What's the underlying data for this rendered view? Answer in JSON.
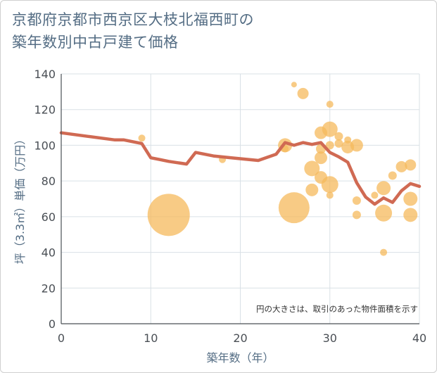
{
  "title_lines": [
    "京都府京都市西京区大枝北福西町の",
    "築年数別中古戸建て価格"
  ],
  "chart_data": {
    "type": "scatter+line",
    "title": "京都府京都市西京区大枝北福西町の築年数別中古戸建て価格",
    "xlabel": "築年数（年）",
    "ylabel": "坪（3.3㎡）単価（万円）",
    "xlim": [
      0,
      40
    ],
    "ylim": [
      0,
      140
    ],
    "xticks": [
      0,
      10,
      20,
      30,
      40
    ],
    "yticks": [
      0,
      20,
      40,
      60,
      80,
      100,
      120,
      140
    ],
    "grid": true,
    "annotation": "円の大きさは、取引のあった物件面積を示す",
    "colors": {
      "bubble": "#f5b95c",
      "line": "#d06a53",
      "grid": "#d9e0e6"
    },
    "bubbles": [
      {
        "x": 9,
        "y": 104,
        "size": 5
      },
      {
        "x": 12,
        "y": 61,
        "size": 30
      },
      {
        "x": 18,
        "y": 92,
        "size": 5
      },
      {
        "x": 25,
        "y": 100,
        "size": 10
      },
      {
        "x": 25,
        "y": 98,
        "size": 5
      },
      {
        "x": 26,
        "y": 65,
        "size": 22
      },
      {
        "x": 26,
        "y": 134,
        "size": 4
      },
      {
        "x": 27,
        "y": 129,
        "size": 8
      },
      {
        "x": 28,
        "y": 87,
        "size": 11
      },
      {
        "x": 28,
        "y": 75,
        "size": 9
      },
      {
        "x": 29,
        "y": 107,
        "size": 9
      },
      {
        "x": 29,
        "y": 98,
        "size": 7
      },
      {
        "x": 29,
        "y": 93,
        "size": 9
      },
      {
        "x": 29,
        "y": 82,
        "size": 9
      },
      {
        "x": 30,
        "y": 123,
        "size": 5
      },
      {
        "x": 30,
        "y": 109,
        "size": 11
      },
      {
        "x": 30,
        "y": 100,
        "size": 6
      },
      {
        "x": 30,
        "y": 78,
        "size": 12
      },
      {
        "x": 30,
        "y": 72,
        "size": 5
      },
      {
        "x": 31,
        "y": 105,
        "size": 6
      },
      {
        "x": 31,
        "y": 101,
        "size": 6
      },
      {
        "x": 32,
        "y": 103,
        "size": 5
      },
      {
        "x": 32,
        "y": 99,
        "size": 9
      },
      {
        "x": 33,
        "y": 100,
        "size": 9
      },
      {
        "x": 33,
        "y": 69,
        "size": 6
      },
      {
        "x": 33,
        "y": 61,
        "size": 6
      },
      {
        "x": 35,
        "y": 72,
        "size": 5
      },
      {
        "x": 36,
        "y": 76,
        "size": 10
      },
      {
        "x": 36,
        "y": 62,
        "size": 12
      },
      {
        "x": 36,
        "y": 40,
        "size": 5
      },
      {
        "x": 37,
        "y": 83,
        "size": 6
      },
      {
        "x": 38,
        "y": 88,
        "size": 8
      },
      {
        "x": 39,
        "y": 89,
        "size": 8
      },
      {
        "x": 39,
        "y": 70,
        "size": 10
      },
      {
        "x": 39,
        "y": 61,
        "size": 10
      }
    ],
    "line": {
      "x": [
        0,
        3,
        6,
        7,
        9,
        10,
        11,
        12,
        14,
        15,
        17,
        19,
        22,
        24,
        25,
        26,
        27,
        28,
        29,
        30,
        31,
        32,
        33,
        34,
        35,
        36,
        37,
        38,
        39,
        40
      ],
      "y": [
        107,
        105,
        103,
        103,
        101,
        93,
        92,
        91,
        89.5,
        96,
        94,
        93,
        91.5,
        95,
        101.5,
        100,
        101.5,
        100.5,
        101.5,
        96,
        93.5,
        90.5,
        79,
        71,
        67,
        70.5,
        68,
        74.5,
        78.5,
        77
      ]
    }
  }
}
